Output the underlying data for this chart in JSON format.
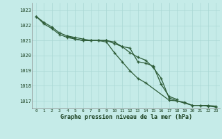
{
  "title": "Graphe pression niveau de la mer (hPa)",
  "background_color": "#c5ebe8",
  "grid_color": "#aad8d4",
  "line_color": "#2d5c38",
  "xlabel_color": "#1a4020",
  "x_labels": [
    "0",
    "1",
    "2",
    "3",
    "4",
    "5",
    "6",
    "7",
    "8",
    "9",
    "10",
    "11",
    "12",
    "13",
    "14",
    "15",
    "16",
    "17",
    "18",
    "19",
    "20",
    "21",
    "22",
    "23"
  ],
  "ylim": [
    1016.5,
    1023.5
  ],
  "yticks": [
    1017,
    1018,
    1019,
    1020,
    1021,
    1022,
    1023
  ],
  "series1": [
    1022.6,
    1022.2,
    1021.9,
    1021.5,
    1021.3,
    1021.2,
    1021.1,
    1021.0,
    1021.0,
    1021.0,
    1020.8,
    1020.6,
    1020.5,
    1019.6,
    1019.5,
    1019.3,
    1018.1,
    1017.3,
    1017.1,
    null,
    null,
    null,
    null,
    null
  ],
  "series2": [
    1022.6,
    1022.1,
    1021.8,
    1021.4,
    1021.2,
    1021.1,
    1021.0,
    1021.0,
    1021.0,
    1021.0,
    1020.9,
    1020.6,
    1020.2,
    1019.9,
    1019.7,
    1019.2,
    1018.5,
    1017.2,
    1017.0,
    1016.9,
    1016.7,
    1016.7,
    1016.7,
    1016.65
  ],
  "series3": [
    null,
    null,
    null,
    null,
    1021.3,
    1021.1,
    1021.0,
    1021.0,
    1021.0,
    1020.9,
    1020.2,
    1019.6,
    1019.0,
    1018.5,
    1018.2,
    null,
    null,
    1017.05,
    1017.0,
    1016.85,
    1016.7,
    1016.7,
    1016.65,
    1016.6
  ],
  "fig_width": 3.2,
  "fig_height": 2.0,
  "dpi": 100
}
